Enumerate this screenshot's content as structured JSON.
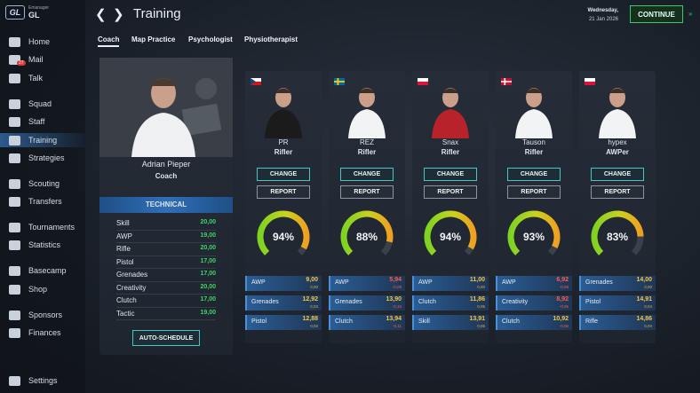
{
  "sidebar": {
    "logo": "GL",
    "brand": "Emanager",
    "team": "GL",
    "mail_badge": "27",
    "items": [
      "Home",
      "Mail",
      "Talk",
      "Squad",
      "Staff",
      "Training",
      "Strategies",
      "Scouting",
      "Transfers",
      "Tournaments",
      "Statistics",
      "Basecamp",
      "Shop",
      "Sponsors",
      "Finances"
    ],
    "settings": "Settings"
  },
  "header": {
    "title": "Training",
    "day": "Wednesday,",
    "date": "21 Jan 2026",
    "continue": "CONTINUE"
  },
  "tabs": [
    "Coach",
    "Map Practice",
    "Psychologist",
    "Physiotherapist"
  ],
  "coach": {
    "name": "Adrian Pieper",
    "role": "Coach",
    "section": "TECHNICAL",
    "attributes": [
      {
        "name": "Skill",
        "value": "20,00"
      },
      {
        "name": "AWP",
        "value": "19,00"
      },
      {
        "name": "Rifle",
        "value": "20,00"
      },
      {
        "name": "Pistol",
        "value": "17,00"
      },
      {
        "name": "Grenades",
        "value": "17,00"
      },
      {
        "name": "Creativity",
        "value": "20,00"
      },
      {
        "name": "Clutch",
        "value": "17,00"
      },
      {
        "name": "Tactic",
        "value": "19,00"
      }
    ],
    "button": "AUTO-SCHEDULE"
  },
  "player_buttons": {
    "change": "CHANGE",
    "report": "REPORT"
  },
  "players": [
    {
      "name": "PR",
      "role": "Rifler",
      "rating": "94%",
      "stats": [
        {
          "name": "AWP",
          "value": "9,00",
          "delta": "0,00"
        },
        {
          "name": "Grenades",
          "value": "12,92",
          "delta": "0,03"
        },
        {
          "name": "Pistol",
          "value": "12,88",
          "delta": "0,02"
        }
      ]
    },
    {
      "name": "REZ",
      "role": "Rifler",
      "rating": "88%",
      "stats": [
        {
          "name": "AWP",
          "value": "5,94",
          "delta": "-0,08"
        },
        {
          "name": "Grenades",
          "value": "13,90",
          "delta": "-0,10"
        },
        {
          "name": "Clutch",
          "value": "13,94",
          "delta": "-0,11"
        }
      ]
    },
    {
      "name": "Snax",
      "role": "Rifler",
      "rating": "94%",
      "stats": [
        {
          "name": "AWP",
          "value": "11,00",
          "delta": "0,00"
        },
        {
          "name": "Clutch",
          "value": "11,86",
          "delta": "0,05"
        },
        {
          "name": "Skill",
          "value": "13,91",
          "delta": "0,05"
        }
      ]
    },
    {
      "name": "Tauson",
      "role": "Rifler",
      "rating": "93%",
      "stats": [
        {
          "name": "AWP",
          "value": "6,92",
          "delta": "-0,08"
        },
        {
          "name": "Creativity",
          "value": "8,92",
          "delta": "-0,06"
        },
        {
          "name": "Clutch",
          "value": "10,92",
          "delta": "-0,06"
        }
      ]
    },
    {
      "name": "hypex",
      "role": "AWPer",
      "rating": "83%",
      "stats": [
        {
          "name": "Grenades",
          "value": "14,00",
          "delta": "0,00"
        },
        {
          "name": "Pistol",
          "value": "14,91",
          "delta": "0,04"
        },
        {
          "name": "Rifle",
          "value": "14,86",
          "delta": "0,04"
        }
      ]
    }
  ]
}
